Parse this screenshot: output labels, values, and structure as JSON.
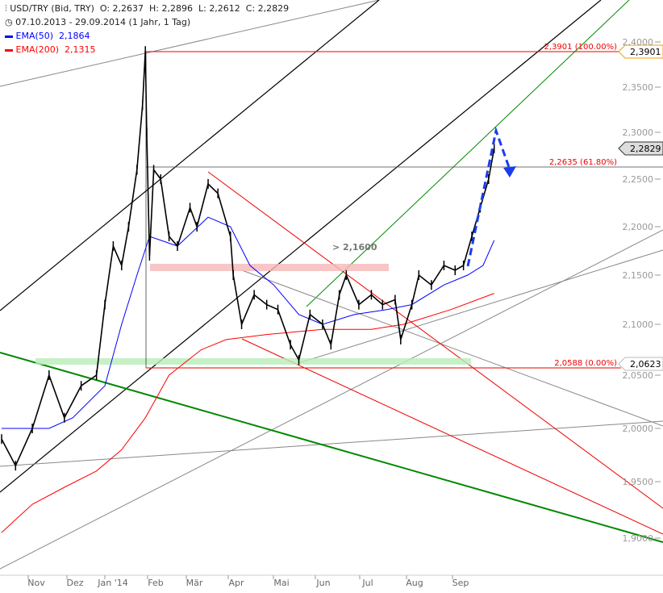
{
  "header": {
    "instrument": "USD/TRY (Bid, TRY)",
    "ohlc": "O: 2,2637  H: 2,2896  L: 2,2612  C: 2,2829",
    "range": "07.10.2013 - 29.09.2014 (1 Jahr, 1 Tag)",
    "ema50": "EMA(50)  2,1864",
    "ema200": "EMA(200)  2,1315"
  },
  "chart_data": {
    "type": "line",
    "title": "USD/TRY (Bid, TRY)",
    "xlabel": "",
    "ylabel": "",
    "x_unit": "days since 07.10.2013",
    "ylim": [
      1.88,
      2.41
    ],
    "yticks": [
      "1,9000",
      "1,9500",
      "2,0000",
      "2,0500",
      "2,1000",
      "2,1500",
      "2,2000",
      "2,2500",
      "2,3000",
      "2,3500",
      "2,4000"
    ],
    "xticks": [
      "Nov",
      "Dez",
      "Jan '14",
      "Feb",
      "Mär",
      "Apr",
      "Mai",
      "Jun",
      "Jul",
      "Aug",
      "Sep"
    ],
    "series": [
      {
        "name": "USD/TRY",
        "color": "#000000",
        "points": [
          [
            0,
            1.99
          ],
          [
            10,
            1.965
          ],
          [
            22,
            2.0
          ],
          [
            34,
            2.05
          ],
          [
            45,
            2.01
          ],
          [
            57,
            2.04
          ],
          [
            68,
            2.05
          ],
          [
            74,
            2.12
          ],
          [
            80,
            2.18
          ],
          [
            86,
            2.16
          ],
          [
            91,
            2.2
          ],
          [
            97,
            2.26
          ],
          [
            101,
            2.33
          ],
          [
            103,
            2.39
          ],
          [
            104,
            2.3
          ],
          [
            106,
            2.17
          ],
          [
            109,
            2.26
          ],
          [
            114,
            2.25
          ],
          [
            120,
            2.19
          ],
          [
            126,
            2.18
          ],
          [
            135,
            2.22
          ],
          [
            140,
            2.2
          ],
          [
            148,
            2.245
          ],
          [
            155,
            2.235
          ],
          [
            164,
            2.19
          ],
          [
            166,
            2.15
          ],
          [
            172,
            2.1
          ],
          [
            181,
            2.13
          ],
          [
            190,
            2.12
          ],
          [
            198,
            2.115
          ],
          [
            207,
            2.08
          ],
          [
            213,
            2.065
          ],
          [
            221,
            2.11
          ],
          [
            230,
            2.1
          ],
          [
            236,
            2.08
          ],
          [
            242,
            2.13
          ],
          [
            247,
            2.15
          ],
          [
            256,
            2.12
          ],
          [
            265,
            2.13
          ],
          [
            273,
            2.12
          ],
          [
            282,
            2.125
          ],
          [
            286,
            2.085
          ],
          [
            294,
            2.12
          ],
          [
            299,
            2.15
          ],
          [
            308,
            2.14
          ],
          [
            317,
            2.16
          ],
          [
            325,
            2.155
          ],
          [
            331,
            2.16
          ],
          [
            337,
            2.19
          ],
          [
            343,
            2.22
          ],
          [
            349,
            2.25
          ],
          [
            353,
            2.2829
          ]
        ]
      },
      {
        "name": "EMA(50)",
        "color": "#0000ff",
        "points": [
          [
            0,
            2.0
          ],
          [
            34,
            2.0
          ],
          [
            51,
            2.01
          ],
          [
            74,
            2.04
          ],
          [
            86,
            2.1
          ],
          [
            97,
            2.15
          ],
          [
            106,
            2.19
          ],
          [
            126,
            2.18
          ],
          [
            148,
            2.21
          ],
          [
            164,
            2.2
          ],
          [
            178,
            2.16
          ],
          [
            195,
            2.14
          ],
          [
            213,
            2.11
          ],
          [
            230,
            2.1
          ],
          [
            253,
            2.11
          ],
          [
            276,
            2.115
          ],
          [
            294,
            2.12
          ],
          [
            317,
            2.14
          ],
          [
            334,
            2.15
          ],
          [
            345,
            2.16
          ],
          [
            353,
            2.186
          ]
        ]
      },
      {
        "name": "EMA(200)",
        "color": "#ff0000",
        "points": [
          [
            0,
            1.905
          ],
          [
            22,
            1.93
          ],
          [
            45,
            1.945
          ],
          [
            68,
            1.96
          ],
          [
            86,
            1.98
          ],
          [
            103,
            2.01
          ],
          [
            120,
            2.05
          ],
          [
            143,
            2.075
          ],
          [
            161,
            2.085
          ],
          [
            190,
            2.09
          ],
          [
            230,
            2.095
          ],
          [
            265,
            2.095
          ],
          [
            288,
            2.1
          ],
          [
            322,
            2.115
          ],
          [
            353,
            2.1315
          ]
        ]
      }
    ],
    "annotations": {
      "fib_100": "2,3901 (100.00%)",
      "fib_618": "2,2635 (61.80%)",
      "fib_0": "2,0588 (0.00%)",
      "zone_label": "> 2,1600",
      "price_tag_high": "2,3901",
      "price_tag_last": "2,2829",
      "price_tag_low": "2,0623"
    }
  }
}
